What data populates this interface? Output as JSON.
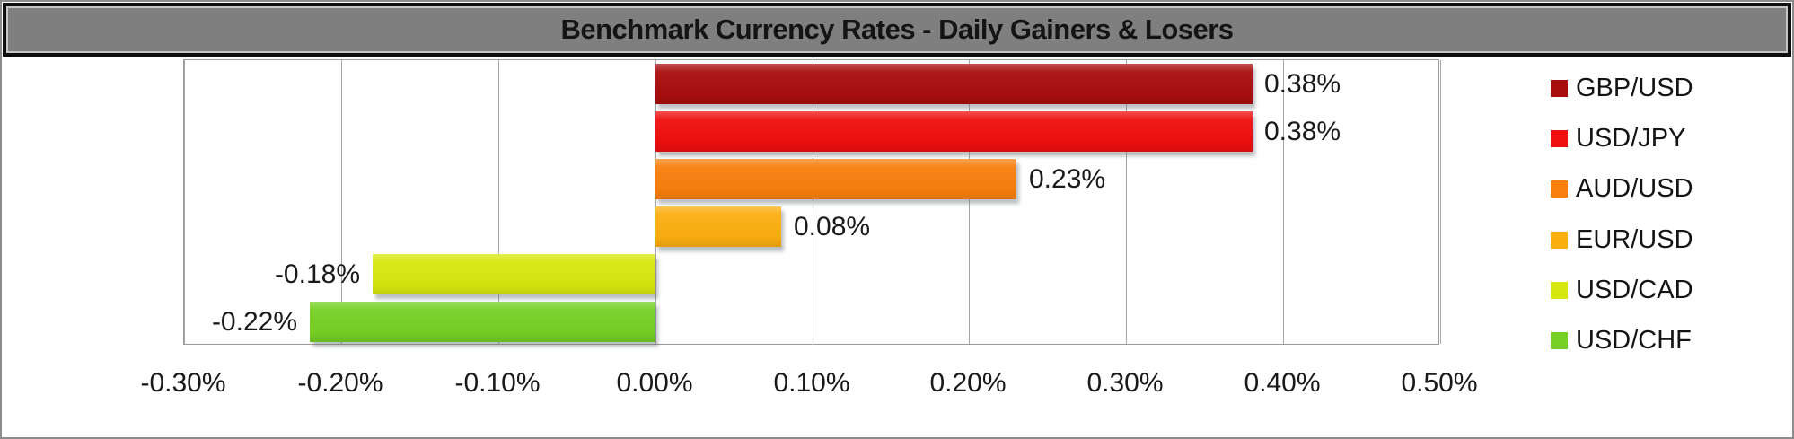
{
  "title": "Benchmark Currency Rates - Daily Gainers & Losers",
  "chart_data": {
    "type": "bar",
    "orientation": "horizontal",
    "title": "Benchmark Currency Rates - Daily Gainers & Losers",
    "categories": [
      "GBP/USD",
      "USD/JPY",
      "AUD/USD",
      "EUR/USD",
      "USD/CAD",
      "USD/CHF"
    ],
    "values": [
      0.38,
      0.38,
      0.23,
      0.08,
      -0.18,
      -0.22
    ],
    "data_labels": [
      "0.38%",
      "0.38%",
      "0.23%",
      "0.08%",
      "-0.18%",
      "-0.22%"
    ],
    "bar_colors": [
      "#a90e0e",
      "#ee0f0f",
      "#f87f0e",
      "#fbae10",
      "#d6e70f",
      "#76d025"
    ],
    "x_ticks": [
      "-0.30%",
      "-0.20%",
      "-0.10%",
      "0.00%",
      "0.10%",
      "0.20%",
      "0.30%",
      "0.40%",
      "0.50%"
    ],
    "x_tick_values": [
      -0.3,
      -0.2,
      -0.1,
      0.0,
      0.1,
      0.2,
      0.3,
      0.4,
      0.5
    ],
    "xlim": [
      -0.3,
      0.5
    ],
    "grid": true,
    "legend_position": "right",
    "legend": [
      "GBP/USD",
      "USD/JPY",
      "AUD/USD",
      "EUR/USD",
      "USD/CAD",
      "USD/CHF"
    ]
  },
  "colors": {
    "title_bg": "#7f7f7f",
    "title_text": "#141414",
    "title_border": "#0e0e0e",
    "grid": "#a6a6a6",
    "plot_border": "#9b9b9b",
    "frame_border": "#8c8c8c",
    "background": "#ffffff",
    "label_text": "#1a1a1a"
  }
}
